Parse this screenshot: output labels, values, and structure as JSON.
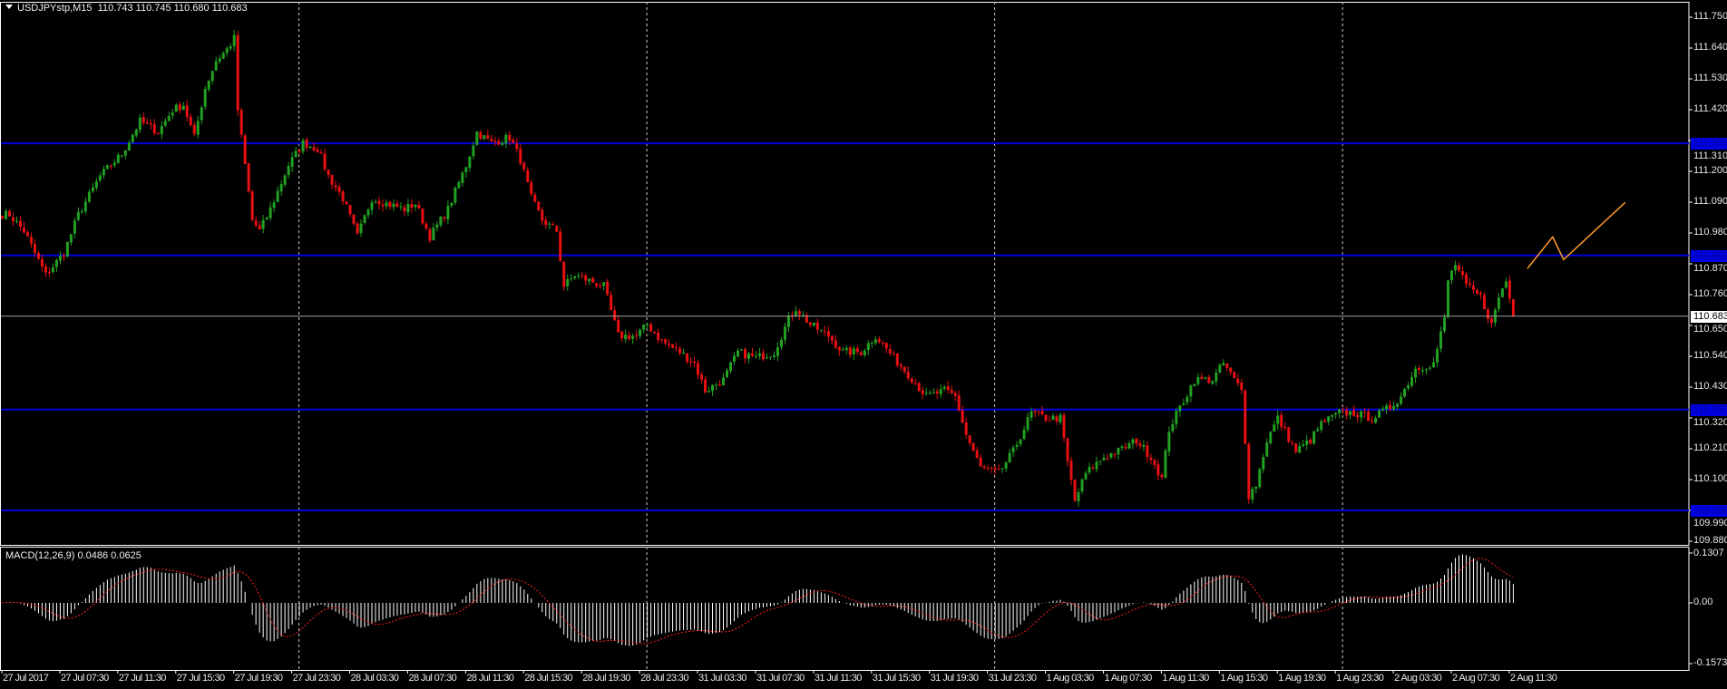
{
  "header": {
    "symbol": "USDJPYstp,M15",
    "ohlc": "110.743 110.745 110.680 110.683",
    "collapse_icon": "triangle-down-icon"
  },
  "indicator": {
    "label": "MACD(12,26,9) 0.0486 0.0625",
    "params": [
      12,
      26,
      9
    ],
    "axis_labels": [
      "0.1307",
      "0.00",
      "-0.1573"
    ],
    "ylim": [
      -0.1573,
      0.1307
    ],
    "histogram_color": "#ffffff",
    "signal_color": "#ff2020"
  },
  "chart_data": {
    "type": "candlestick",
    "symbol": "USDJPYstp",
    "timeframe": "M15",
    "ylim": [
      109.88,
      111.75
    ],
    "price_ticks": [
      "111.750",
      "111.640",
      "111.530",
      "111.420",
      "111.310",
      "111.200",
      "111.090",
      "110.980",
      "110.870",
      "110.760",
      "110.650",
      "110.540",
      "110.430",
      "110.320",
      "110.210",
      "110.100",
      "109.990",
      "109.880"
    ],
    "time_labels": [
      "27 Jul 2017",
      "27 Jul 07:30",
      "27 Jul 11:30",
      "27 Jul 15:30",
      "27 Jul 19:30",
      "27 Jul 23:30",
      "28 Jul 03:30",
      "28 Jul 07:30",
      "28 Jul 11:30",
      "28 Jul 15:30",
      "28 Jul 19:30",
      "28 Jul 23:30",
      "31 Jul 03:30",
      "31 Jul 07:30",
      "31 Jul 11:30",
      "31 Jul 15:30",
      "31 Jul 19:30",
      "31 Jul 23:30",
      "1 Aug 03:30",
      "1 Aug 07:30",
      "1 Aug 11:30",
      "1 Aug 15:30",
      "1 Aug 19:30",
      "1 Aug 23:30",
      "2 Aug 03:30",
      "2 Aug 07:30",
      "2 Aug 11:30"
    ],
    "bars_per_time_label": 16,
    "day_separator_bars": [
      82,
      178,
      274,
      370
    ],
    "last_bar": {
      "open": 110.743,
      "high": 110.745,
      "low": 110.68,
      "close": 110.683
    },
    "current_price": "110.683",
    "close_path_bar_price": [
      [
        2,
        111.046
      ],
      [
        6,
        110.987
      ],
      [
        12,
        110.83
      ],
      [
        17,
        110.908
      ],
      [
        21,
        111.046
      ],
      [
        27,
        111.183
      ],
      [
        33,
        111.262
      ],
      [
        38,
        111.379
      ],
      [
        43,
        111.34
      ],
      [
        47,
        111.419
      ],
      [
        50,
        111.438
      ],
      [
        53,
        111.321
      ],
      [
        56,
        111.497
      ],
      [
        59,
        111.595
      ],
      [
        62,
        111.635
      ],
      [
        64,
        111.674
      ],
      [
        65,
        111.419
      ],
      [
        67,
        111.222
      ],
      [
        69,
        111.026
      ],
      [
        71,
        110.987
      ],
      [
        74,
        111.065
      ],
      [
        79,
        111.222
      ],
      [
        83,
        111.301
      ],
      [
        87,
        111.281
      ],
      [
        90,
        111.183
      ],
      [
        94,
        111.104
      ],
      [
        98,
        110.967
      ],
      [
        102,
        111.104
      ],
      [
        106,
        111.085
      ],
      [
        111,
        111.065
      ],
      [
        114,
        111.085
      ],
      [
        118,
        110.967
      ],
      [
        123,
        111.065
      ],
      [
        128,
        111.222
      ],
      [
        131,
        111.34
      ],
      [
        135,
        111.301
      ],
      [
        140,
        111.321
      ],
      [
        143,
        111.242
      ],
      [
        146,
        111.104
      ],
      [
        149,
        111.026
      ],
      [
        153,
        110.987
      ],
      [
        155,
        110.79
      ],
      [
        158,
        110.83
      ],
      [
        162,
        110.81
      ],
      [
        166,
        110.79
      ],
      [
        170,
        110.613
      ],
      [
        175,
        110.613
      ],
      [
        178,
        110.653
      ],
      [
        182,
        110.594
      ],
      [
        187,
        110.555
      ],
      [
        191,
        110.515
      ],
      [
        194,
        110.417
      ],
      [
        199,
        110.456
      ],
      [
        203,
        110.555
      ],
      [
        208,
        110.535
      ],
      [
        213,
        110.555
      ],
      [
        217,
        110.672
      ],
      [
        219,
        110.712
      ],
      [
        223,
        110.653
      ],
      [
        228,
        110.613
      ],
      [
        232,
        110.555
      ],
      [
        237,
        110.555
      ],
      [
        241,
        110.613
      ],
      [
        246,
        110.535
      ],
      [
        250,
        110.476
      ],
      [
        255,
        110.397
      ],
      [
        260,
        110.417
      ],
      [
        263,
        110.397
      ],
      [
        266,
        110.26
      ],
      [
        270,
        110.142
      ],
      [
        275,
        110.122
      ],
      [
        279,
        110.201
      ],
      [
        284,
        110.338
      ],
      [
        288,
        110.319
      ],
      [
        292,
        110.319
      ],
      [
        294,
        110.162
      ],
      [
        296,
        110.024
      ],
      [
        299,
        110.122
      ],
      [
        304,
        110.181
      ],
      [
        308,
        110.201
      ],
      [
        313,
        110.24
      ],
      [
        317,
        110.181
      ],
      [
        320,
        110.103
      ],
      [
        322,
        110.28
      ],
      [
        325,
        110.358
      ],
      [
        329,
        110.456
      ],
      [
        334,
        110.456
      ],
      [
        337,
        110.515
      ],
      [
        342,
        110.417
      ],
      [
        343,
        110.24
      ],
      [
        344,
        110.044
      ],
      [
        346,
        110.083
      ],
      [
        349,
        110.24
      ],
      [
        352,
        110.319
      ],
      [
        357,
        110.201
      ],
      [
        361,
        110.24
      ],
      [
        364,
        110.299
      ],
      [
        369,
        110.338
      ],
      [
        373,
        110.338
      ],
      [
        378,
        110.319
      ],
      [
        383,
        110.358
      ],
      [
        386,
        110.397
      ],
      [
        390,
        110.496
      ],
      [
        395,
        110.515
      ],
      [
        398,
        110.672
      ],
      [
        399,
        110.81
      ],
      [
        401,
        110.869
      ],
      [
        404,
        110.79
      ],
      [
        408,
        110.751
      ],
      [
        411,
        110.653
      ],
      [
        413,
        110.751
      ],
      [
        415,
        110.81
      ],
      [
        417,
        110.683
      ]
    ],
    "horizontal_lines": [
      {
        "price": "111.300",
        "color": "#0000e0"
      },
      {
        "price": "110.900",
        "color": "#0000e0"
      },
      {
        "price": "110.350",
        "color": "#0000e0"
      },
      {
        "price": "109.990",
        "color": "#0000e0"
      }
    ],
    "projection_path_bar_price": [
      [
        421,
        110.853
      ],
      [
        428,
        110.966
      ],
      [
        431,
        110.885
      ],
      [
        448,
        111.089
      ]
    ],
    "colors": {
      "bull": "#22a022",
      "bear": "#e81010",
      "background": "#000000",
      "projection": "#ff9a2a",
      "current_price_line": "#a0a0a0"
    }
  }
}
